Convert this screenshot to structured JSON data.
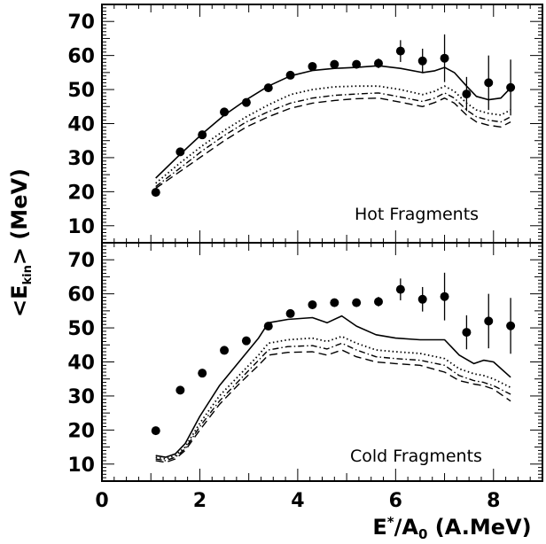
{
  "chart_data": [
    {
      "type": "line",
      "panel_label": "Hot Fragments",
      "ylim": [
        5,
        75
      ],
      "yticks": [
        10,
        20,
        30,
        40,
        50,
        60,
        70
      ],
      "xlim": [
        0,
        9
      ],
      "xticks": [
        0,
        2,
        4,
        6,
        8
      ],
      "series": [
        {
          "style": "points",
          "x": [
            1.1,
            1.6,
            2.05,
            2.5,
            2.95,
            3.4,
            3.85,
            4.3,
            4.75,
            5.2,
            5.65,
            6.1,
            6.55,
            7.0,
            7.45,
            7.9,
            8.35
          ],
          "y": [
            19.8,
            31.7,
            36.7,
            43.4,
            46.2,
            50.5,
            54.2,
            56.8,
            57.4,
            57.4,
            57.7,
            61.3,
            58.4,
            59.2,
            48.7,
            52.0,
            50.6
          ],
          "yerr": [
            0.5,
            0.8,
            0.8,
            0.8,
            0.8,
            0.8,
            0.9,
            0.9,
            0.9,
            1.0,
            1.4,
            3.2,
            3.6,
            7.0,
            5.0,
            8.0,
            8.2
          ]
        },
        {
          "style": "solid",
          "x": [
            1.1,
            1.6,
            2.05,
            2.5,
            2.95,
            3.4,
            3.85,
            4.3,
            4.75,
            5.2,
            5.65,
            6.1,
            6.55,
            6.8,
            7.0,
            7.2,
            7.45,
            7.65,
            7.9,
            8.15,
            8.35
          ],
          "y": [
            24,
            31,
            37,
            42.5,
            47,
            51,
            54,
            55.6,
            56.2,
            56.5,
            57,
            56.2,
            55,
            55.5,
            56.5,
            55,
            51,
            48,
            47,
            47.5,
            50.5
          ]
        },
        {
          "style": "dotted",
          "x": [
            1.1,
            1.6,
            2.05,
            2.5,
            2.95,
            3.4,
            3.85,
            4.3,
            4.75,
            5.2,
            5.65,
            6.1,
            6.55,
            6.8,
            7.0,
            7.2,
            7.45,
            7.65,
            7.9,
            8.15,
            8.35
          ],
          "y": [
            22.5,
            28.5,
            33.5,
            38,
            42,
            45.5,
            48.5,
            50,
            50.8,
            51,
            51,
            50,
            48.5,
            49.5,
            51,
            49.5,
            46,
            44,
            43,
            42.5,
            44
          ]
        },
        {
          "style": "dashdot",
          "x": [
            1.1,
            1.6,
            2.05,
            2.5,
            2.95,
            3.4,
            3.85,
            4.3,
            4.75,
            5.2,
            5.65,
            6.1,
            6.55,
            6.8,
            7.0,
            7.2,
            7.45,
            7.65,
            7.9,
            8.15,
            8.35
          ],
          "y": [
            21.5,
            27,
            32,
            36.5,
            40.5,
            43.5,
            46,
            47.5,
            48.3,
            48.7,
            49,
            47.8,
            46.5,
            47.5,
            49,
            47.5,
            44,
            42,
            41,
            40.5,
            42
          ]
        },
        {
          "style": "dashed",
          "x": [
            1.1,
            1.6,
            2.05,
            2.5,
            2.95,
            3.4,
            3.85,
            4.3,
            4.75,
            5.2,
            5.65,
            6.1,
            6.55,
            6.8,
            7.0,
            7.2,
            7.45,
            7.65,
            7.9,
            8.15,
            8.35
          ],
          "y": [
            21,
            26,
            30.5,
            35,
            39,
            42,
            44.5,
            46,
            46.8,
            47.3,
            47.5,
            46.3,
            45,
            46.2,
            47.5,
            46,
            42.5,
            40.5,
            39.5,
            39,
            40.5
          ]
        }
      ]
    },
    {
      "type": "line",
      "panel_label": "Cold Fragments",
      "ylim": [
        5,
        75
      ],
      "yticks": [
        10,
        20,
        30,
        40,
        50,
        60,
        70
      ],
      "xlim": [
        0,
        9
      ],
      "xticks": [
        0,
        2,
        4,
        6,
        8
      ],
      "series": [
        {
          "style": "points",
          "x": [
            1.1,
            1.6,
            2.05,
            2.5,
            2.95,
            3.4,
            3.85,
            4.3,
            4.75,
            5.2,
            5.65,
            6.1,
            6.55,
            7.0,
            7.45,
            7.9,
            8.35
          ],
          "y": [
            19.8,
            31.7,
            36.7,
            43.4,
            46.2,
            50.5,
            54.2,
            56.8,
            57.4,
            57.4,
            57.7,
            61.3,
            58.4,
            59.2,
            48.7,
            52.0,
            50.6
          ],
          "yerr": [
            0.5,
            0.8,
            0.8,
            0.8,
            0.8,
            0.8,
            0.9,
            0.9,
            0.9,
            1.0,
            1.4,
            3.2,
            3.6,
            7.0,
            5.0,
            8.0,
            8.2
          ]
        },
        {
          "style": "solid",
          "x": [
            1.1,
            1.3,
            1.5,
            1.7,
            2.0,
            2.4,
            2.8,
            3.2,
            3.4,
            3.8,
            4.3,
            4.6,
            4.9,
            5.2,
            5.6,
            6.0,
            6.5,
            7.0,
            7.3,
            7.6,
            7.8,
            8.0,
            8.35
          ],
          "y": [
            12.5,
            12,
            13,
            16,
            24,
            33,
            40,
            47,
            51.5,
            52.5,
            53,
            51.5,
            53.5,
            50.5,
            48,
            47,
            46.5,
            46.5,
            42,
            39.5,
            40.5,
            40,
            35.5
          ]
        },
        {
          "style": "dotted",
          "x": [
            1.1,
            1.3,
            1.5,
            1.7,
            2.0,
            2.4,
            2.8,
            3.2,
            3.4,
            3.8,
            4.3,
            4.6,
            4.9,
            5.2,
            5.6,
            6.0,
            6.5,
            7.0,
            7.3,
            7.6,
            7.8,
            8.0,
            8.35
          ],
          "y": [
            12,
            11.5,
            12.5,
            15,
            22,
            30,
            36,
            42,
            45.5,
            46.5,
            47,
            46,
            47.5,
            45.5,
            43.5,
            43,
            42.5,
            41,
            38,
            36.5,
            36,
            35,
            32.5
          ]
        },
        {
          "style": "dashdot",
          "x": [
            1.1,
            1.3,
            1.5,
            1.7,
            2.0,
            2.4,
            2.8,
            3.2,
            3.4,
            3.8,
            4.3,
            4.6,
            4.9,
            5.2,
            5.6,
            6.0,
            6.5,
            7.0,
            7.3,
            7.6,
            7.8,
            8.0,
            8.35
          ],
          "y": [
            11.5,
            11,
            12,
            14.5,
            21,
            28.5,
            34.5,
            40.5,
            43.5,
            44.5,
            44.8,
            43.8,
            45.5,
            43.5,
            41.5,
            41,
            40.5,
            39,
            36,
            34.5,
            34,
            33,
            30.5
          ]
        },
        {
          "style": "dashed",
          "x": [
            1.1,
            1.3,
            1.5,
            1.7,
            2.0,
            2.4,
            2.8,
            3.2,
            3.4,
            3.8,
            4.3,
            4.6,
            4.9,
            5.2,
            5.6,
            6.0,
            6.5,
            7.0,
            7.3,
            7.6,
            7.8,
            8.0,
            8.35
          ],
          "y": [
            11,
            10.5,
            11.5,
            14,
            20,
            27.5,
            33.5,
            39,
            42,
            42.8,
            43,
            42,
            43.5,
            41.5,
            40,
            39.5,
            39,
            37,
            34.5,
            33.5,
            33,
            32,
            28.5
          ]
        }
      ]
    }
  ]
}
